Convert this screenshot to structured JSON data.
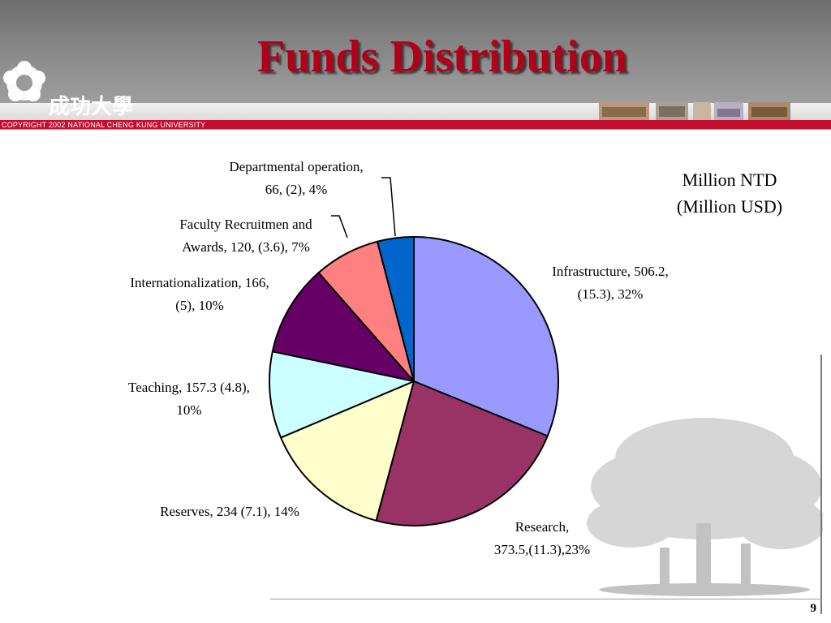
{
  "slide": {
    "title": "Funds Distribution",
    "copyright": "COPYRIGHT 2002 NATIONAL CHENG KUNG UNIVERSITY",
    "logo_text": "成功大學",
    "unit_line1": "Million NTD",
    "unit_line2": "(Million USD)",
    "page_number": "9"
  },
  "colors": {
    "title": "#b0001a",
    "header_gray": "#8c8c8c",
    "red_rule": "#c20f2f"
  },
  "chart_data": {
    "type": "pie",
    "title": "",
    "start_angle_deg": 0,
    "direction": "clockwise",
    "slices": [
      {
        "name": "Infrastructure",
        "value": 506.2,
        "usd": 15.3,
        "percent": 32,
        "color": "#9999ff",
        "label_lines": [
          "Infrastructure, 506.2,",
          "(15.3), 32%"
        ]
      },
      {
        "name": "Research",
        "value": 373.5,
        "usd": 11.3,
        "percent": 23,
        "color": "#993366",
        "label_lines": [
          "Research,",
          "373.5,(11.3),23%"
        ]
      },
      {
        "name": "Reserves",
        "value": 234,
        "usd": 7.1,
        "percent": 14,
        "color": "#ffffcc",
        "label_lines": [
          "Reserves, 234 (7.1), 14%"
        ]
      },
      {
        "name": "Teaching",
        "value": 157.3,
        "usd": 4.8,
        "percent": 10,
        "color": "#ccffff",
        "label_lines": [
          "Teaching, 157.3 (4.8),",
          "10%"
        ]
      },
      {
        "name": "Internationalization",
        "value": 166,
        "usd": 5,
        "percent": 10,
        "color": "#660066",
        "label_lines": [
          "Internationalization, 166,",
          "(5), 10%"
        ]
      },
      {
        "name": "Faculty Recruitmen and Awards",
        "value": 120,
        "usd": 3.6,
        "percent": 7,
        "color": "#ff8080",
        "label_lines": [
          "Faculty Recruitmen and",
          "Awards, 120, (3.6), 7%"
        ]
      },
      {
        "name": "Departmental operation",
        "value": 66,
        "usd": 2,
        "percent": 4,
        "color": "#0066cc",
        "label_lines": [
          "Departmental operation,",
          "66, (2), 4%"
        ]
      }
    ]
  }
}
